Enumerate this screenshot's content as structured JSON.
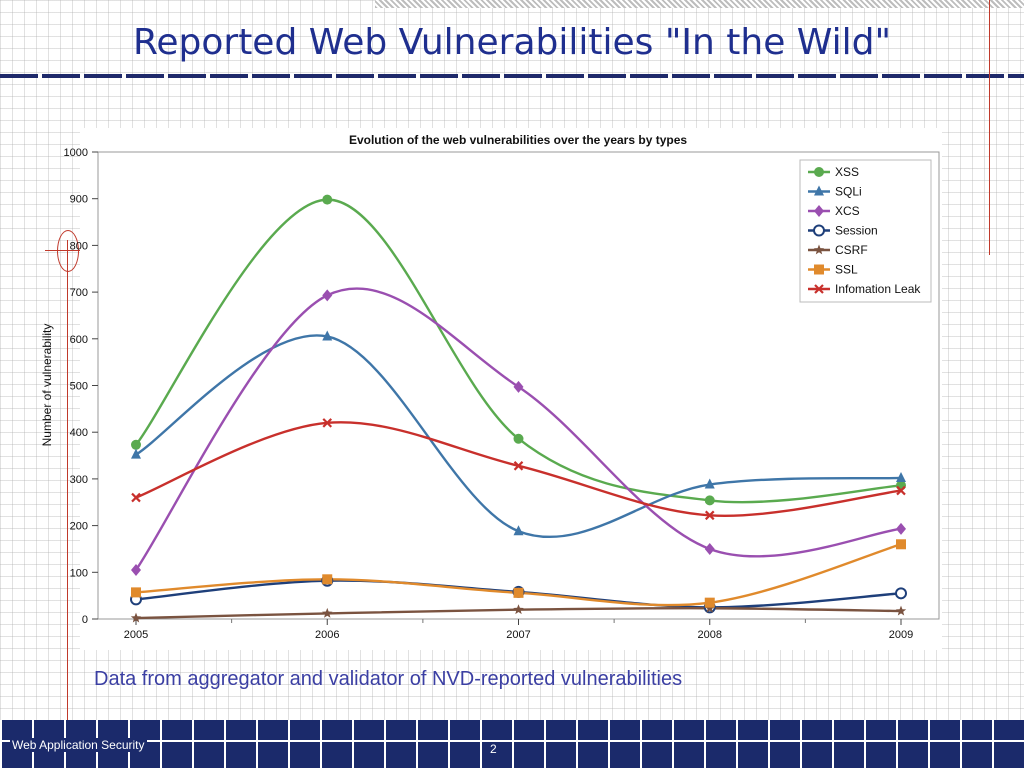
{
  "slide": {
    "title": "Reported Web Vulnerabilities \"In the Wild\"",
    "caption": "Data from aggregator and validator of  NVD-reported vulnerabilities",
    "footer_left": "Web Application Security",
    "page_number": "2"
  },
  "chart_data": {
    "type": "line",
    "title": "Evolution of the web vulnerabilities over the years by types",
    "xlabel": "",
    "ylabel": "Number of vulnerability",
    "x": [
      "2005",
      "2006",
      "2007",
      "2008",
      "2009"
    ],
    "ylim": [
      0,
      1000
    ],
    "yticks": [
      0,
      100,
      200,
      300,
      400,
      500,
      600,
      700,
      800,
      900,
      1000
    ],
    "grid": false,
    "smooth": true,
    "legend_position": "top-right",
    "series": [
      {
        "name": "XSS",
        "values": [
          373,
          898,
          386,
          254,
          286
        ],
        "color": "#5aaa4f",
        "marker": "circle"
      },
      {
        "name": "SQLi",
        "values": [
          352,
          605,
          188,
          288,
          302
        ],
        "color": "#3f76a8",
        "marker": "triangle"
      },
      {
        "name": "XCS",
        "values": [
          105,
          693,
          497,
          150,
          193
        ],
        "color": "#9a4fb0",
        "marker": "diamond"
      },
      {
        "name": "Session",
        "values": [
          42,
          82,
          58,
          25,
          55
        ],
        "color": "#1e3f7a",
        "marker": "open-circle"
      },
      {
        "name": "CSRF",
        "values": [
          2,
          12,
          20,
          23,
          17
        ],
        "color": "#7a5340",
        "marker": "star"
      },
      {
        "name": "SSL",
        "values": [
          57,
          85,
          56,
          35,
          160
        ],
        "color": "#e08a2c",
        "marker": "square"
      },
      {
        "name": "Infomation Leak",
        "values": [
          260,
          420,
          328,
          222,
          275
        ],
        "color": "#c8302c",
        "marker": "x"
      }
    ]
  }
}
